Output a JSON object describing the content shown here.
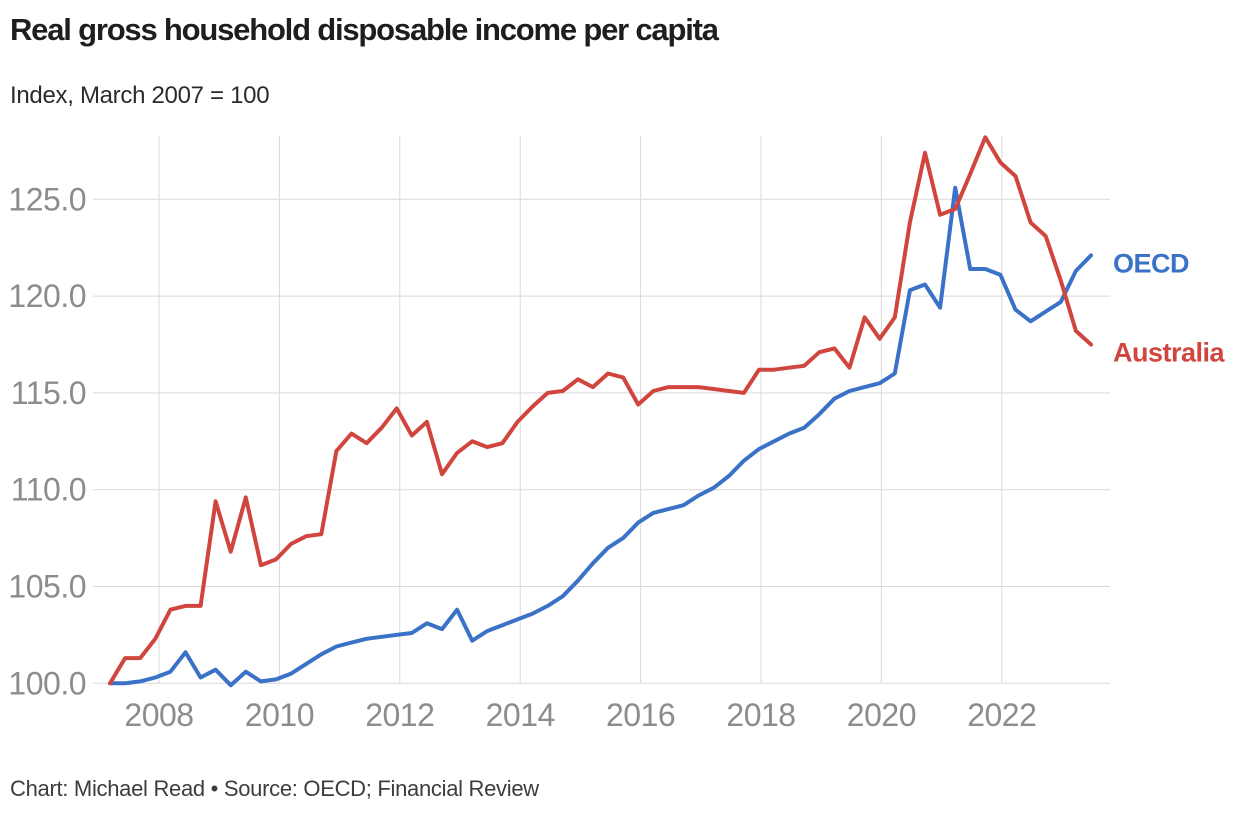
{
  "chart": {
    "title": "Real gross household disposable income per capita",
    "subtitle": "Index, March 2007 = 100",
    "footer": "Chart: Michael Read • Source: OECD; Financial Review"
  },
  "chart_data": {
    "type": "line",
    "title": "Real gross household disposable income per capita",
    "subtitle": "Index, March 2007 = 100",
    "source_note": "Chart: Michael Read • Source: OECD; Financial Review",
    "x_frequency": "quarterly",
    "xlim": [
      "Mar-2007",
      "Jun-2023"
    ],
    "ylim": [
      99.5,
      128.5
    ],
    "grid": true,
    "legend_position": "end-of-line-labels-right",
    "x_ticks": [
      {
        "label": "2008",
        "year": 2008
      },
      {
        "label": "2010",
        "year": 2010
      },
      {
        "label": "2012",
        "year": 2012
      },
      {
        "label": "2014",
        "year": 2014
      },
      {
        "label": "2016",
        "year": 2016
      },
      {
        "label": "2018",
        "year": 2018
      },
      {
        "label": "2020",
        "year": 2020
      },
      {
        "label": "2022",
        "year": 2022
      }
    ],
    "y_ticks": [
      {
        "label": "100.0",
        "value": 100
      },
      {
        "label": "105.0",
        "value": 105
      },
      {
        "label": "110.0",
        "value": 110
      },
      {
        "label": "115.0",
        "value": 115
      },
      {
        "label": "120.0",
        "value": 120
      },
      {
        "label": "125.0",
        "value": 125
      }
    ],
    "quarters": [
      "Mar-2007",
      "Jun-2007",
      "Sep-2007",
      "Dec-2007",
      "Mar-2008",
      "Jun-2008",
      "Sep-2008",
      "Dec-2008",
      "Mar-2009",
      "Jun-2009",
      "Sep-2009",
      "Dec-2009",
      "Mar-2010",
      "Jun-2010",
      "Sep-2010",
      "Dec-2010",
      "Mar-2011",
      "Jun-2011",
      "Sep-2011",
      "Dec-2011",
      "Mar-2012",
      "Jun-2012",
      "Sep-2012",
      "Dec-2012",
      "Mar-2013",
      "Jun-2013",
      "Sep-2013",
      "Dec-2013",
      "Mar-2014",
      "Jun-2014",
      "Sep-2014",
      "Dec-2014",
      "Mar-2015",
      "Jun-2015",
      "Sep-2015",
      "Dec-2015",
      "Mar-2016",
      "Jun-2016",
      "Sep-2016",
      "Dec-2016",
      "Mar-2017",
      "Jun-2017",
      "Sep-2017",
      "Dec-2017",
      "Mar-2018",
      "Jun-2018",
      "Sep-2018",
      "Dec-2018",
      "Mar-2019",
      "Jun-2019",
      "Sep-2019",
      "Dec-2019",
      "Mar-2020",
      "Jun-2020",
      "Sep-2020",
      "Dec-2020",
      "Mar-2021",
      "Jun-2021",
      "Sep-2021",
      "Dec-2021",
      "Mar-2022",
      "Jun-2022",
      "Sep-2022",
      "Dec-2022",
      "Mar-2023",
      "Jun-2023"
    ],
    "series": [
      {
        "name": "OECD",
        "color": "#3a72c8",
        "values": [
          100.0,
          100.0,
          100.1,
          100.3,
          100.6,
          101.6,
          100.3,
          100.7,
          99.9,
          100.6,
          100.1,
          100.2,
          100.5,
          101.0,
          101.5,
          101.9,
          102.1,
          102.3,
          102.4,
          102.5,
          102.6,
          103.1,
          102.8,
          103.8,
          102.2,
          102.7,
          103.0,
          103.3,
          103.6,
          104.0,
          104.5,
          105.3,
          106.2,
          107.0,
          107.5,
          108.3,
          108.8,
          109.0,
          109.2,
          109.7,
          110.1,
          110.7,
          111.5,
          112.1,
          112.5,
          112.9,
          113.2,
          113.9,
          114.7,
          115.1,
          115.3,
          115.5,
          116.0,
          120.3,
          120.6,
          119.4,
          125.6,
          121.4,
          121.4,
          121.1,
          119.3,
          118.7,
          119.2,
          119.7,
          121.3,
          122.1
        ]
      },
      {
        "name": "Australia",
        "color": "#d0463e",
        "values": [
          100.0,
          101.3,
          101.3,
          102.3,
          103.8,
          104.0,
          104.0,
          109.4,
          106.8,
          109.6,
          106.1,
          106.4,
          107.2,
          107.6,
          107.7,
          112.0,
          112.9,
          112.4,
          113.2,
          114.2,
          112.8,
          113.5,
          110.8,
          111.9,
          112.5,
          112.2,
          112.4,
          113.5,
          114.3,
          115.0,
          115.1,
          115.7,
          115.3,
          116.0,
          115.8,
          114.4,
          115.1,
          115.3,
          115.3,
          115.3,
          115.2,
          115.1,
          115.0,
          116.2,
          116.2,
          116.3,
          116.4,
          117.1,
          117.3,
          116.3,
          118.9,
          117.8,
          118.9,
          123.8,
          127.4,
          124.2,
          124.5,
          126.3,
          128.2,
          126.9,
          126.2,
          123.8,
          123.1,
          120.8,
          118.2,
          117.5
        ]
      }
    ],
    "colors": {
      "grid": "#d9d9d9",
      "tick_text": "#8c8c8c",
      "title_text": "#1e1e1e",
      "footer_text": "#3d3d3d"
    }
  }
}
